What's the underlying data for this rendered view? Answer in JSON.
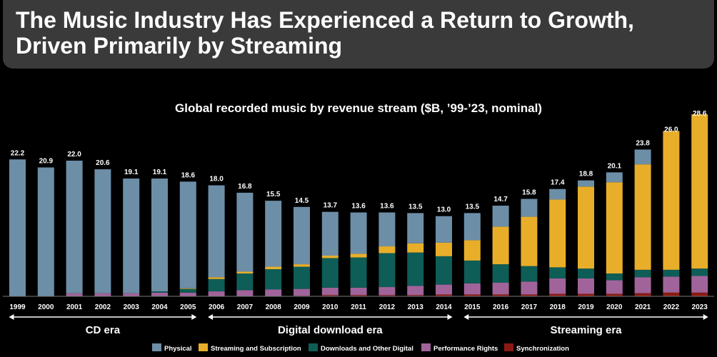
{
  "slide": {
    "title_line1": "The Music Industry Has Experienced a Return to Growth,",
    "title_line2": "Driven Primarily by Streaming"
  },
  "chart_data": {
    "type": "bar",
    "stacked": true,
    "title": "Global recorded music by revenue stream ($B, ’99-’23, nominal)",
    "categories": [
      "1999",
      "2000",
      "2001",
      "2002",
      "2003",
      "2004",
      "2005",
      "2006",
      "2007",
      "2008",
      "2009",
      "2010",
      "2011",
      "2012",
      "2013",
      "2014",
      "2015",
      "2016",
      "2017",
      "2018",
      "2019",
      "2020",
      "2021",
      "2022",
      "2023"
    ],
    "totals": [
      22.2,
      20.9,
      22.0,
      20.6,
      19.1,
      19.1,
      18.6,
      18.0,
      16.8,
      15.5,
      14.5,
      13.7,
      13.6,
      13.6,
      13.5,
      13.0,
      13.5,
      14.7,
      15.8,
      17.4,
      18.8,
      20.1,
      23.8,
      26.0,
      28.6
    ],
    "total_labels": [
      "22.2",
      "20.9",
      "22.0",
      "20.6",
      "19.1",
      "19.1",
      "18.6",
      "18.0",
      "16.8",
      "15.5",
      "14.5",
      "13.7",
      "13.6",
      "13.6",
      "13.5",
      "13.0",
      "13.5",
      "14.7",
      "15.8",
      "17.4",
      "18.8",
      "20.1",
      "23.8",
      "26.0",
      "28.6"
    ],
    "series": [
      {
        "name": "Synchronization",
        "color": "#8b1a12",
        "values": [
          0,
          0,
          0,
          0,
          0,
          0,
          0,
          0,
          0,
          0,
          0.1,
          0.2,
          0.2,
          0.2,
          0.2,
          0.3,
          0.3,
          0.3,
          0.3,
          0.4,
          0.4,
          0.4,
          0.5,
          0.6,
          0.6
        ]
      },
      {
        "name": "Performance Rights",
        "color": "#a0649a",
        "values": [
          0,
          0,
          0.5,
          0.5,
          0.5,
          0.6,
          0.6,
          0.8,
          1.0,
          1.1,
          1.1,
          1.2,
          1.2,
          1.3,
          1.5,
          1.6,
          1.8,
          1.9,
          2.1,
          2.5,
          2.5,
          2.2,
          2.6,
          2.6,
          2.7
        ]
      },
      {
        "name": "Downloads and Other Digital",
        "color": "#0e5d57",
        "values": [
          0,
          0,
          0,
          0,
          0,
          0.2,
          0.6,
          2.0,
          2.7,
          3.3,
          3.6,
          4.8,
          4.9,
          5.5,
          5.4,
          4.6,
          3.7,
          3.0,
          2.5,
          1.8,
          1.6,
          1.1,
          1.2,
          1.1,
          1.2
        ]
      },
      {
        "name": "Streaming and Subscription",
        "color": "#e8ae2a",
        "values": [
          0,
          0,
          0,
          0,
          0,
          0,
          0.1,
          0.3,
          0.3,
          0.4,
          0.4,
          0.4,
          0.6,
          1.1,
          1.5,
          2.2,
          3.3,
          6.1,
          8.0,
          11.0,
          13.3,
          14.8,
          17.1,
          22.5,
          25.0
        ]
      },
      {
        "name": "Physical",
        "color": "#6d8ea7",
        "values": [
          22.2,
          20.9,
          21.5,
          20.1,
          18.6,
          18.3,
          17.3,
          14.9,
          12.8,
          10.7,
          9.3,
          7.1,
          6.7,
          5.5,
          4.9,
          4.3,
          4.4,
          3.4,
          2.9,
          1.7,
          1.0,
          1.6,
          2.4,
          -0.8,
          -0.9
        ]
      }
    ],
    "legend_order": [
      "Physical",
      "Streaming and Subscription",
      "Downloads and Other Digital",
      "Performance Rights",
      "Synchronization"
    ],
    "legend_position": "bottom",
    "eras": [
      {
        "label": "CD era",
        "from": "1999",
        "to": "2005"
      },
      {
        "label": "Digital download era",
        "from": "2006",
        "to": "2014"
      },
      {
        "label": "Streaming era",
        "from": "2015",
        "to": "2023"
      }
    ],
    "ylim": [
      0,
      28.6
    ],
    "grid": false,
    "xlabel": "",
    "ylabel": ""
  }
}
